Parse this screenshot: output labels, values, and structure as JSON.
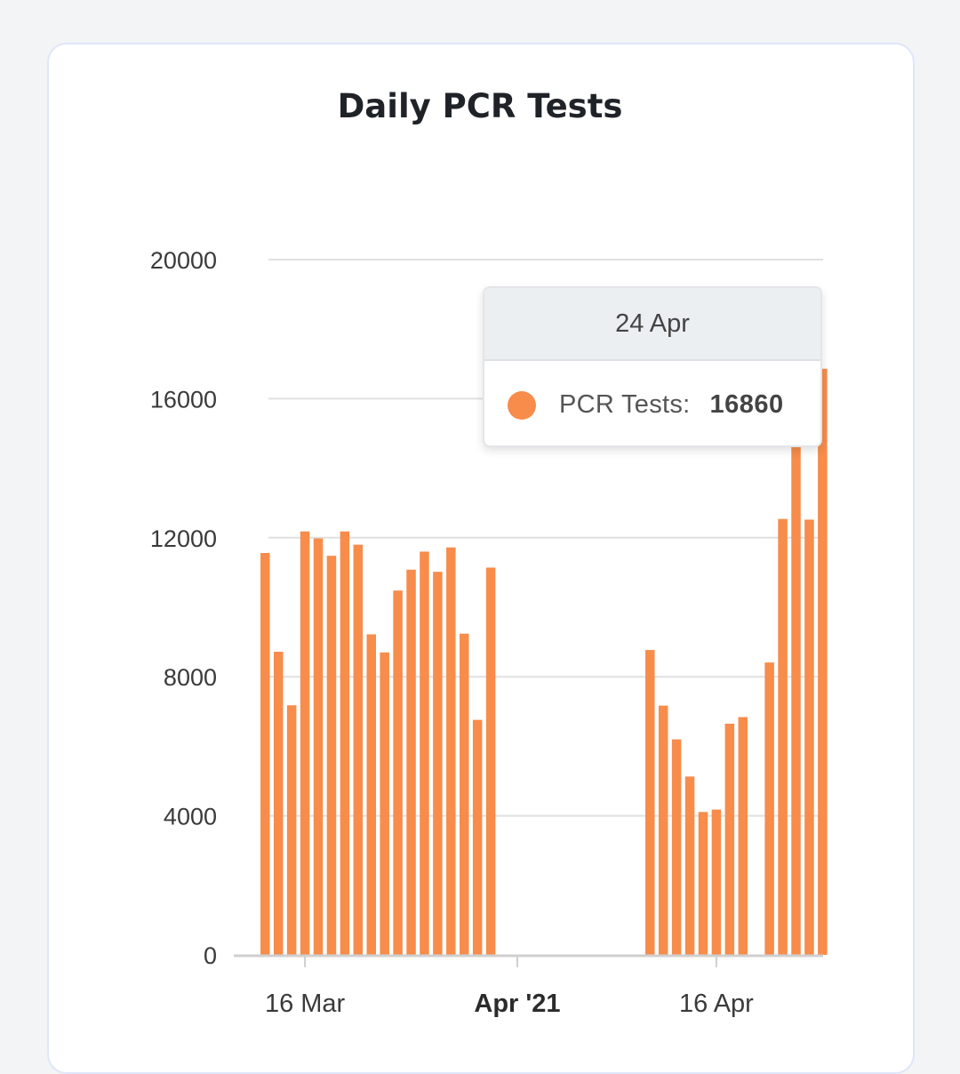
{
  "chart_data": {
    "type": "bar",
    "title": "Daily PCR Tests",
    "series": [
      {
        "name": "PCR Tests",
        "color": "#f78c4b"
      }
    ],
    "x": [
      "2021-03-13",
      "2021-03-14",
      "2021-03-15",
      "2021-03-16",
      "2021-03-17",
      "2021-03-18",
      "2021-03-19",
      "2021-03-20",
      "2021-03-21",
      "2021-03-22",
      "2021-03-23",
      "2021-03-24",
      "2021-03-25",
      "2021-03-26",
      "2021-03-27",
      "2021-03-28",
      "2021-03-29",
      "2021-03-30",
      "2021-03-31",
      "2021-04-01",
      "2021-04-02",
      "2021-04-03",
      "2021-04-04",
      "2021-04-05",
      "2021-04-06",
      "2021-04-07",
      "2021-04-08",
      "2021-04-09",
      "2021-04-10",
      "2021-04-11",
      "2021-04-12",
      "2021-04-13",
      "2021-04-14",
      "2021-04-15",
      "2021-04-16",
      "2021-04-17",
      "2021-04-18",
      "2021-04-19",
      "2021-04-20",
      "2021-04-21",
      "2021-04-22",
      "2021-04-23",
      "2021-04-24"
    ],
    "values": [
      11560,
      8720,
      7180,
      12180,
      11980,
      11480,
      12180,
      11800,
      9220,
      8700,
      10480,
      11080,
      11600,
      11020,
      11720,
      9240,
      6760,
      11140,
      0,
      0,
      0,
      0,
      0,
      0,
      0,
      0,
      0,
      0,
      0,
      8770,
      7170,
      6200,
      5130,
      4110,
      4180,
      6650,
      6840,
      0,
      8410,
      12540,
      15320,
      12520,
      16860
    ],
    "ylim": [
      0,
      20000
    ],
    "yticks": [
      0,
      4000,
      8000,
      12000,
      16000,
      20000
    ],
    "xticks": [
      {
        "date": "2021-03-16",
        "label": "16 Mar",
        "bold": false
      },
      {
        "date": "2021-04-01",
        "label": "Apr '21",
        "bold": true
      },
      {
        "date": "2021-04-16",
        "label": "16 Apr",
        "bold": false
      }
    ],
    "grid": true,
    "tooltip": {
      "date": "24 Apr",
      "series": "PCR Tests:",
      "value": "16860"
    }
  },
  "colors": {
    "bar": "#f78c4b",
    "grid": "#e0e0e0",
    "axis": "#cfcfcf"
  }
}
